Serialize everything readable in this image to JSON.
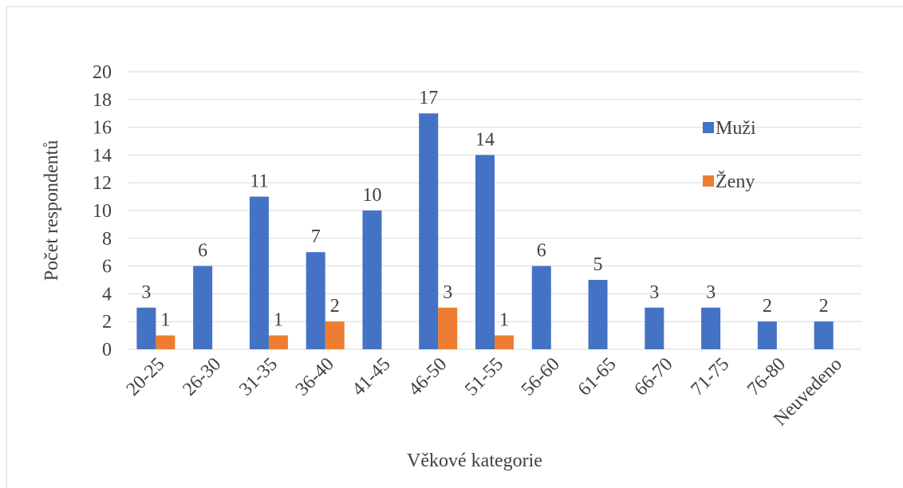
{
  "chart_data": {
    "type": "bar",
    "x_label": "Věkové kategorie",
    "y_label": "Počet respondentů",
    "categories": [
      "20-25",
      "26-30",
      "31-35",
      "36-40",
      "41-45",
      "46-50",
      "51-55",
      "56-60",
      "61-65",
      "66-70",
      "71-75",
      "76-80",
      "Neuvedeno"
    ],
    "series": [
      {
        "name": "Muži",
        "color": "#4472c4",
        "values": [
          3,
          6,
          11,
          7,
          10,
          17,
          14,
          6,
          5,
          3,
          3,
          2,
          2
        ]
      },
      {
        "name": "Ženy",
        "color": "#ed7d31",
        "values": [
          1,
          null,
          1,
          2,
          null,
          3,
          1,
          null,
          null,
          null,
          null,
          null,
          null
        ]
      }
    ],
    "ylim": [
      0,
      20
    ],
    "yticks": [
      0,
      2,
      4,
      6,
      8,
      10,
      12,
      14,
      16,
      18,
      20
    ],
    "grid": true,
    "legend": "right"
  }
}
